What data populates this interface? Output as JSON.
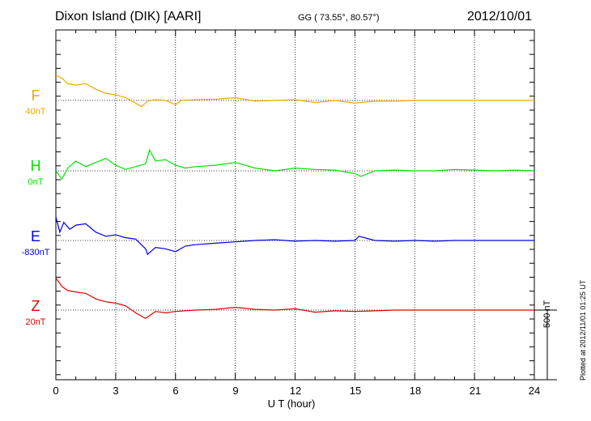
{
  "header": {
    "station": "Dixon Island (DIK)  [AARI]",
    "coords": "GG ( 73.55°,  80.57°)",
    "date": "2012/10/01"
  },
  "side_texts": {
    "scale": "500 nT",
    "stamp": "Plotted at 2012/11/01 01:25 UT"
  },
  "chart_data": {
    "type": "line",
    "xlabel": "U T (hour)",
    "xlim": [
      0,
      24
    ],
    "x_ticks": [
      "0",
      "3",
      "6",
      "9",
      "12",
      "15",
      "18",
      "21",
      "24"
    ],
    "grid": true,
    "scale_bar_nT": 500,
    "series": [
      {
        "name": "F",
        "baseline_label": "40nT",
        "color": "#f0a800",
        "x": [
          0,
          0.3,
          0.6,
          1.0,
          1.5,
          2.0,
          2.5,
          3.0,
          3.5,
          4.0,
          4.3,
          4.6,
          5.0,
          5.5,
          6.0,
          6.3,
          7.0,
          8.0,
          9.0,
          10,
          11,
          12,
          13,
          14,
          15,
          16,
          17,
          18,
          19,
          20,
          21,
          22,
          23,
          24
        ],
        "y": [
          180,
          160,
          120,
          110,
          120,
          80,
          50,
          40,
          20,
          -20,
          -45,
          -5,
          5,
          0,
          -30,
          0,
          5,
          8,
          20,
          -5,
          0,
          5,
          -15,
          0,
          -20,
          -5,
          -5,
          0,
          0,
          0,
          0,
          0,
          0,
          0
        ]
      },
      {
        "name": "H",
        "baseline_label": "0nT",
        "color": "#00e000",
        "x": [
          0,
          0.3,
          0.6,
          1.0,
          1.5,
          2.0,
          2.5,
          3.0,
          3.5,
          4.0,
          4.5,
          4.7,
          5.0,
          5.5,
          6.0,
          6.5,
          7.0,
          8.0,
          9.0,
          10,
          11,
          12,
          13,
          14,
          15,
          15.3,
          16,
          17,
          18,
          19,
          20,
          21,
          22,
          23,
          24
        ],
        "y": [
          0,
          -60,
          20,
          70,
          30,
          60,
          90,
          40,
          10,
          30,
          50,
          150,
          70,
          80,
          40,
          20,
          30,
          40,
          60,
          20,
          0,
          20,
          10,
          5,
          -20,
          -40,
          0,
          5,
          0,
          0,
          10,
          5,
          0,
          5,
          0
        ]
      },
      {
        "name": "E",
        "baseline_label": "-830nT",
        "color": "#0000e0",
        "x": [
          0,
          0.2,
          0.4,
          0.7,
          1.0,
          1.5,
          2.0,
          2.5,
          3.0,
          3.5,
          4.0,
          4.5,
          4.6,
          5.0,
          5.5,
          6.0,
          6.5,
          7.0,
          8.0,
          9.0,
          10,
          11,
          12,
          13,
          14,
          15,
          15.2,
          16,
          17,
          18,
          19,
          20,
          21,
          22,
          23,
          24
        ],
        "y": [
          170,
          60,
          130,
          80,
          110,
          120,
          60,
          30,
          40,
          20,
          10,
          -60,
          -100,
          -50,
          -60,
          -80,
          -40,
          -30,
          -20,
          -10,
          0,
          5,
          -5,
          0,
          -5,
          0,
          30,
          0,
          -5,
          0,
          -5,
          0,
          0,
          0,
          0,
          0
        ]
      },
      {
        "name": "Z",
        "baseline_label": "20nT",
        "color": "#e00000",
        "x": [
          0,
          0.3,
          0.6,
          1.0,
          1.5,
          2.0,
          2.5,
          3.0,
          3.5,
          4.0,
          4.5,
          5.0,
          5.5,
          6.0,
          7.0,
          8.0,
          9.0,
          10,
          11,
          12,
          13,
          14,
          15,
          16,
          17,
          18,
          19,
          20,
          21,
          22,
          23,
          24
        ],
        "y": [
          230,
          170,
          140,
          130,
          120,
          80,
          60,
          50,
          30,
          -20,
          -60,
          -10,
          -20,
          -10,
          0,
          5,
          20,
          5,
          0,
          10,
          -15,
          -5,
          -10,
          -5,
          0,
          0,
          0,
          0,
          0,
          0,
          0,
          0
        ]
      }
    ]
  }
}
